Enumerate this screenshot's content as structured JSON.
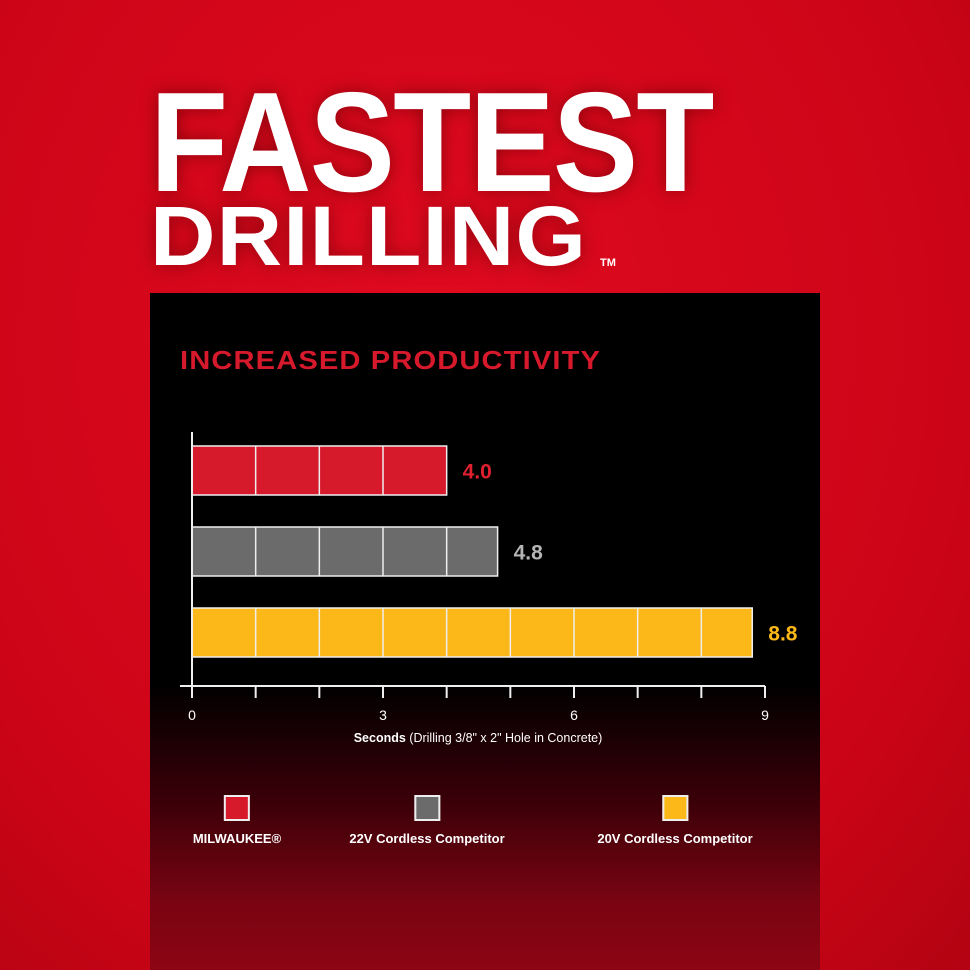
{
  "headline": {
    "line1": "FASTEST",
    "line2": "DRILLING",
    "trademark": "TM"
  },
  "chart_data": {
    "type": "bar",
    "orientation": "horizontal",
    "title": "INCREASED PRODUCTIVITY",
    "xlabel_bold": "Seconds",
    "xlabel_rest": " (Drilling 3/8\" x 2\" Hole in Concrete)",
    "xlim": [
      0,
      9
    ],
    "xticks": [
      0,
      3,
      6,
      9
    ],
    "categories": [
      "MILWAUKEE®",
      "22V Cordless Competitor",
      "20V Cordless Competitor"
    ],
    "values": [
      4.0,
      4.8,
      8.8
    ],
    "value_labels": [
      "4.0",
      "4.8",
      "8.8"
    ],
    "colors": [
      "#d7192c",
      "#6b6b6b",
      "#fbb818"
    ],
    "label_colors": [
      "#e0202f",
      "#b5b5b5",
      "#fbb818"
    ],
    "legend": "bottom",
    "grid": false
  }
}
